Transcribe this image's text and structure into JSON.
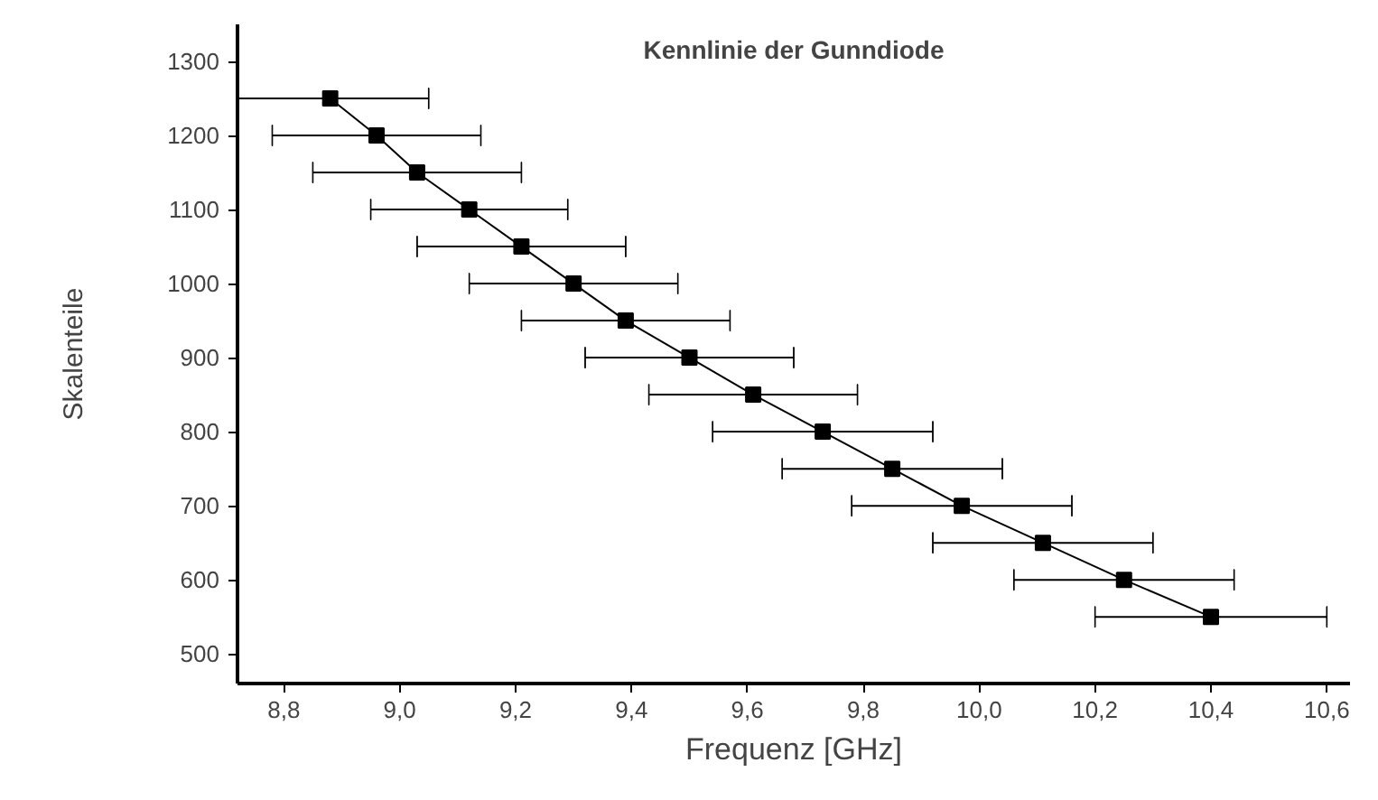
{
  "chart_data": {
    "type": "line",
    "title": "Kennlinie der Gunndiode",
    "xlabel": "Frequenz [GHz]",
    "ylabel": "Skalenteile",
    "x": [
      8.88,
      8.96,
      9.03,
      9.12,
      9.21,
      9.3,
      9.39,
      9.5,
      9.61,
      9.73,
      9.85,
      9.97,
      10.11,
      10.25,
      10.4
    ],
    "series": [
      {
        "color": "#000000",
        "values": [
          1250,
          1200,
          1150,
          1100,
          1050,
          1000,
          950,
          900,
          850,
          800,
          750,
          700,
          650,
          600,
          550
        ],
        "xerrors": [
          0.17,
          0.18,
          0.18,
          0.17,
          0.18,
          0.18,
          0.18,
          0.18,
          0.18,
          0.19,
          0.19,
          0.19,
          0.19,
          0.19,
          0.2
        ]
      }
    ],
    "xlim": [
      8.72,
      10.64
    ],
    "ylim": [
      460,
      1350
    ],
    "xticks": [
      {
        "value": 8.8,
        "label": "8,8"
      },
      {
        "value": 9.0,
        "label": "9,0"
      },
      {
        "value": 9.2,
        "label": "9,2"
      },
      {
        "value": 9.4,
        "label": "9,4"
      },
      {
        "value": 9.6,
        "label": "9,6"
      },
      {
        "value": 9.8,
        "label": "9,8"
      },
      {
        "value": 10.0,
        "label": "10,0"
      },
      {
        "value": 10.2,
        "label": "10,2"
      },
      {
        "value": 10.4,
        "label": "10,4"
      },
      {
        "value": 10.6,
        "label": "10,6"
      }
    ],
    "yticks": [
      500,
      600,
      700,
      800,
      900,
      1000,
      1100,
      1200,
      1300
    ],
    "grid": false,
    "marker": "square",
    "line_style": "solid"
  }
}
